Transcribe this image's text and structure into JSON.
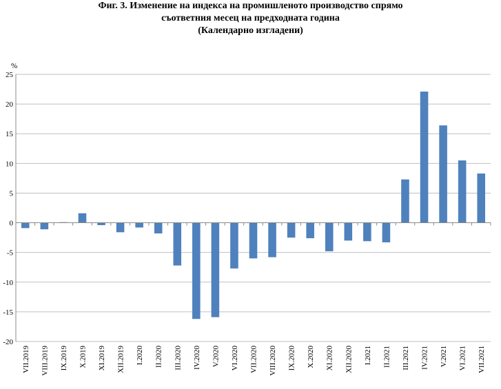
{
  "title_lines": [
    "Фиг. 3. Изменение на индекса на промишленото производство спрямо",
    "съответния месец на предходната година",
    "(Календарно изгладени)"
  ],
  "chart_data": {
    "type": "bar",
    "ylabel": "%",
    "ylim": [
      -20,
      25
    ],
    "yticks": [
      25,
      20,
      15,
      10,
      5,
      0,
      -5,
      -10,
      -15,
      -20
    ],
    "ytick_labels": [
      "25",
      "20",
      "15",
      "10",
      "5",
      "0",
      "-5",
      "-10",
      "-15",
      "-20"
    ],
    "grid": true,
    "categories": [
      "VII.2019",
      "VIII.2019",
      "IX.2019",
      "X.2019",
      "XI.2019",
      "XII.2019",
      "I.2020",
      "II.2020",
      "III.2020",
      "IV.2020",
      "V.2020",
      "VI.2020",
      "VII.2020",
      "VIII.2020",
      "IX.2020",
      "X.2020",
      "XI.2020",
      "XII.2020",
      "I.2021",
      "II.2021",
      "III.2021",
      "IV.2021",
      "V.2021",
      "VI.2021",
      "VII.2021"
    ],
    "values": [
      -0.9,
      -1.1,
      0.1,
      1.6,
      -0.4,
      -1.6,
      -0.8,
      -1.8,
      -7.2,
      -16.2,
      -15.9,
      -7.7,
      -6.0,
      -5.8,
      -2.5,
      -2.6,
      -4.8,
      -3.0,
      -3.1,
      -3.3,
      7.3,
      22.1,
      16.4,
      10.5,
      8.3
    ],
    "bar_color": "#4f81bd",
    "grid_color": "#bfbfbf"
  }
}
